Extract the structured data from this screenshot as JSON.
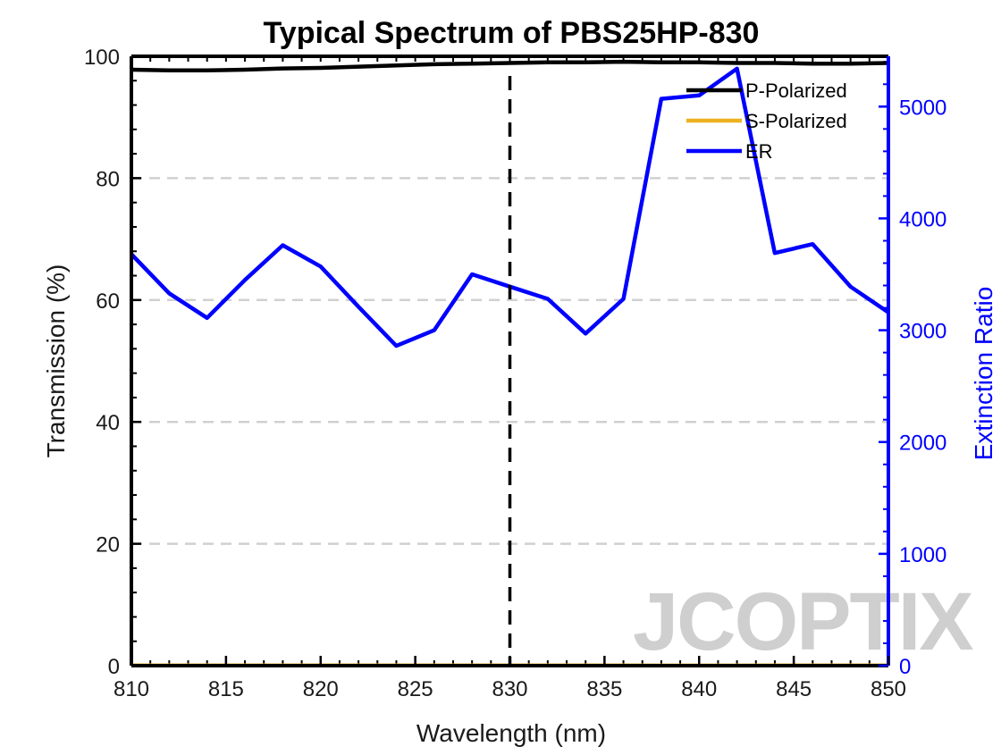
{
  "chart_data": {
    "type": "line",
    "title": "Typical Spectrum of PBS25HP-830",
    "xlabel": "Wavelength (nm)",
    "ylabel_left": "Transmission (%)",
    "ylabel_right": "Extinction Ratio",
    "xlim": [
      810,
      850
    ],
    "ylim_left": [
      0,
      100
    ],
    "ylim_right": [
      0,
      5450
    ],
    "x_ticks": [
      810,
      815,
      820,
      825,
      830,
      835,
      840,
      845,
      850
    ],
    "y_ticks_left": [
      0,
      20,
      40,
      60,
      80,
      100
    ],
    "y_ticks_right": [
      0,
      1000,
      2000,
      3000,
      4000,
      5000
    ],
    "grid": "horizontal dashed",
    "legend_position": "top-right",
    "reference_line_x": 830,
    "series": [
      {
        "name": "P-Polarized",
        "axis": "left",
        "color": "#000000",
        "x": [
          810,
          812,
          814,
          816,
          818,
          820,
          822,
          824,
          826,
          828,
          830,
          832,
          834,
          836,
          838,
          840,
          842,
          844,
          846,
          848,
          850
        ],
        "values": [
          97.8,
          97.7,
          97.7,
          97.8,
          98.0,
          98.1,
          98.3,
          98.5,
          98.7,
          98.8,
          98.9,
          99.0,
          99.0,
          99.1,
          99.0,
          99.0,
          98.9,
          98.9,
          98.8,
          98.8,
          98.9
        ]
      },
      {
        "name": "S-Polarized",
        "axis": "left",
        "color": "#EDB120",
        "x": [
          810,
          812,
          814,
          816,
          818,
          820,
          822,
          824,
          826,
          828,
          830,
          832,
          834,
          836,
          838,
          840,
          842,
          844,
          846,
          848,
          850
        ],
        "values": [
          0.03,
          0.03,
          0.03,
          0.03,
          0.03,
          0.03,
          0.03,
          0.03,
          0.03,
          0.03,
          0.03,
          0.03,
          0.03,
          0.03,
          0.02,
          0.02,
          0.02,
          0.03,
          0.03,
          0.03,
          0.03
        ]
      },
      {
        "name": "ER",
        "axis": "right",
        "color": "#0000FF",
        "x": [
          810,
          812,
          814,
          816,
          818,
          820,
          822,
          824,
          826,
          828,
          830,
          832,
          834,
          836,
          838,
          840,
          842,
          844,
          846,
          848,
          850
        ],
        "values": [
          3680,
          3330,
          3110,
          3450,
          3760,
          3570,
          3210,
          2860,
          3000,
          3500,
          3390,
          3280,
          2970,
          3280,
          5070,
          5100,
          5340,
          3690,
          3770,
          3390,
          3160
        ]
      }
    ]
  },
  "watermark": {
    "text": "JCOPTIX"
  }
}
